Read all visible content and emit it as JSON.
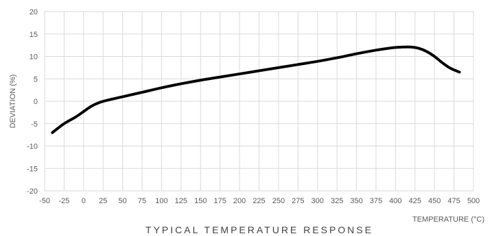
{
  "chart_data": {
    "type": "line",
    "title": "TYPICAL TEMPERATURE RESPONSE",
    "xlabel": "TEMPERATURE (°C)",
    "ylabel": "DEVIATION (%)",
    "xlim": [
      -50,
      500
    ],
    "ylim": [
      -20,
      20
    ],
    "xticks": [
      -50,
      -25,
      0,
      25,
      50,
      75,
      100,
      125,
      150,
      175,
      200,
      225,
      250,
      275,
      300,
      325,
      350,
      375,
      400,
      425,
      450,
      475,
      500
    ],
    "yticks": [
      20,
      15,
      10,
      5,
      0,
      -5,
      -10,
      -15,
      -20
    ],
    "grid": true,
    "legend": "none",
    "series": [
      {
        "color": "#000000",
        "x": [
          -40,
          -25,
          -10,
          0,
          10,
          20,
          30,
          50,
          75,
          100,
          125,
          150,
          175,
          200,
          225,
          250,
          275,
          300,
          325,
          350,
          375,
          390,
          400,
          410,
          420,
          430,
          440,
          450,
          460,
          470,
          482
        ],
        "y": [
          -7,
          -5,
          -3.5,
          -2.3,
          -1.1,
          -0.3,
          0.2,
          1.0,
          2.0,
          3.0,
          3.9,
          4.7,
          5.4,
          6.1,
          6.8,
          7.5,
          8.2,
          8.9,
          9.7,
          10.6,
          11.4,
          11.8,
          12.0,
          12.1,
          12.1,
          11.8,
          11.1,
          10.0,
          8.6,
          7.4,
          6.5
        ]
      }
    ]
  }
}
